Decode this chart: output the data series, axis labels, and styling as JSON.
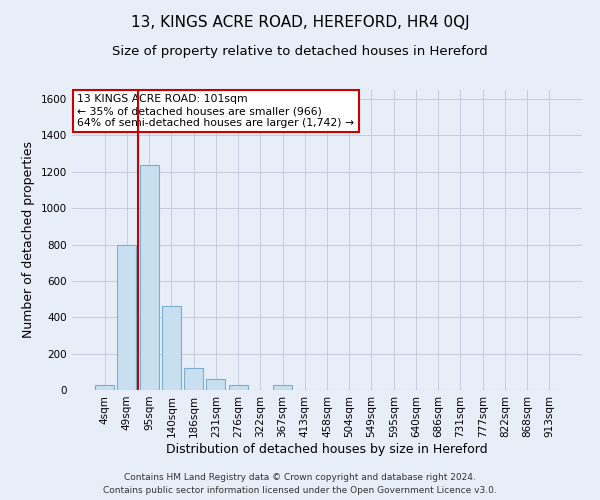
{
  "title": "13, KINGS ACRE ROAD, HEREFORD, HR4 0QJ",
  "subtitle": "Size of property relative to detached houses in Hereford",
  "xlabel": "Distribution of detached houses by size in Hereford",
  "ylabel": "Number of detached properties",
  "bar_labels": [
    "4sqm",
    "49sqm",
    "95sqm",
    "140sqm",
    "186sqm",
    "231sqm",
    "276sqm",
    "322sqm",
    "367sqm",
    "413sqm",
    "458sqm",
    "504sqm",
    "549sqm",
    "595sqm",
    "640sqm",
    "686sqm",
    "731sqm",
    "777sqm",
    "822sqm",
    "868sqm",
    "913sqm"
  ],
  "bar_values": [
    25,
    800,
    1240,
    460,
    120,
    60,
    25,
    0,
    25,
    0,
    0,
    0,
    0,
    0,
    0,
    0,
    0,
    0,
    0,
    0,
    0
  ],
  "bar_color": "#c8dff0",
  "bar_edge_color": "#7aafd4",
  "vline_x": 1.5,
  "vline_color": "#cc0000",
  "ylim": [
    0,
    1650
  ],
  "yticks": [
    0,
    200,
    400,
    600,
    800,
    1000,
    1200,
    1400,
    1600
  ],
  "annotation_text": "13 KINGS ACRE ROAD: 101sqm\n← 35% of detached houses are smaller (966)\n64% of semi-detached houses are larger (1,742) →",
  "annotation_box_color": "#ffffff",
  "annotation_box_edge": "#cc0000",
  "footer_line1": "Contains HM Land Registry data © Crown copyright and database right 2024.",
  "footer_line2": "Contains public sector information licensed under the Open Government Licence v3.0.",
  "bg_color": "#e8eef8",
  "plot_bg_color": "#e8eef8",
  "title_fontsize": 11,
  "subtitle_fontsize": 9.5,
  "axis_label_fontsize": 9,
  "tick_fontsize": 7.5,
  "footer_fontsize": 6.5
}
